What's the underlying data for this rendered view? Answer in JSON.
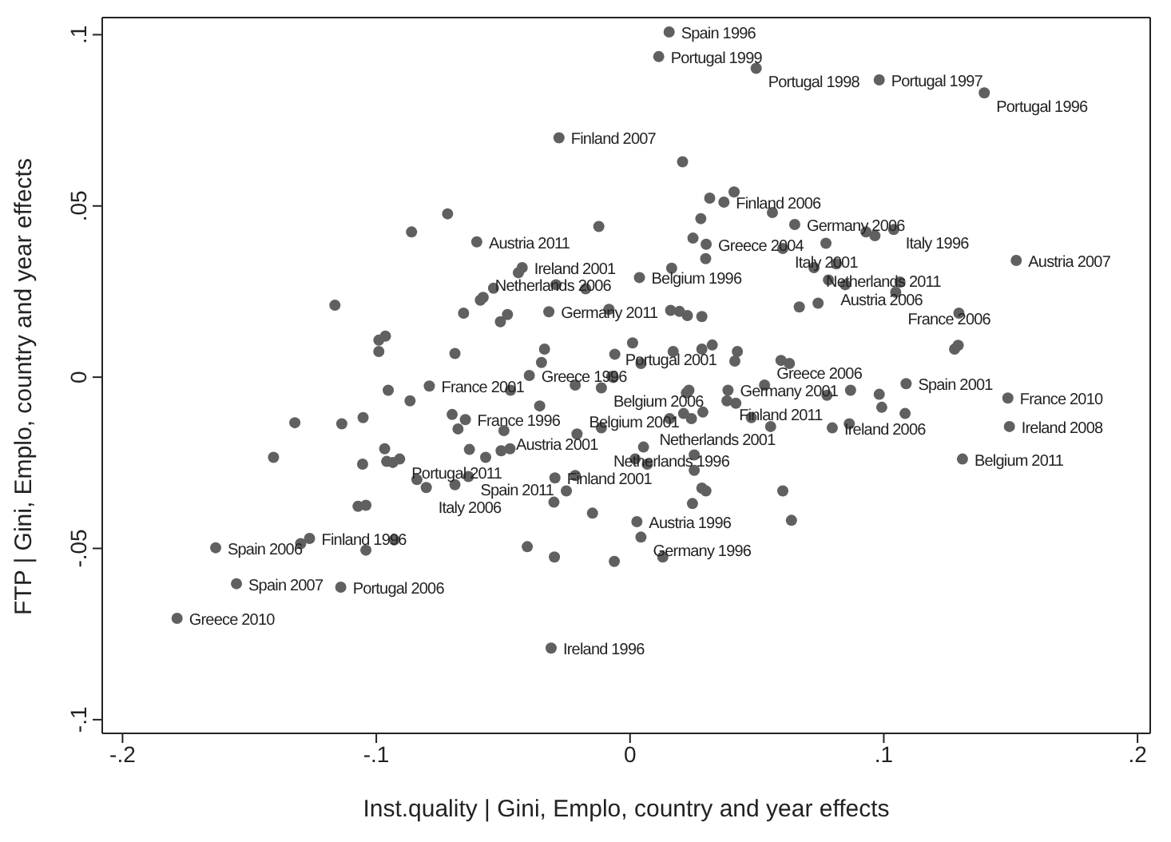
{
  "chart_data": {
    "type": "scatter",
    "xlabel": "Inst.quality |  Gini, Emplo, country and year effects",
    "ylabel": "FTP | Gini, Emplo, country and year effects",
    "color": "#606060",
    "marker": "circle",
    "xlim": [
      -0.208,
      0.205
    ],
    "ylim": [
      -0.104,
      0.105
    ],
    "xticks": [
      {
        "value": -0.2,
        "label": "-.2"
      },
      {
        "value": -0.1,
        "label": "-.1"
      },
      0,
      {
        "value": 0.1,
        "label": ".1"
      },
      {
        "value": 0.2,
        "label": ".2"
      }
    ],
    "yticks": [
      {
        "value": -0.1,
        "label": "-.1"
      },
      {
        "value": -0.05,
        "label": "-.05"
      },
      0,
      {
        "value": 0.05,
        "label": ".05"
      },
      {
        "value": 0.1,
        "label": ".1"
      }
    ],
    "x": [
      0.0154,
      0.0113,
      0.0497,
      0.0982,
      0.1396,
      -0.028,
      0.0207,
      0.0314,
      0.037,
      0.041,
      0.0561,
      0.0279,
      0.0649,
      0.0248,
      0.03,
      0.0298,
      0.0602,
      0.0772,
      0.093,
      0.0965,
      0.1039,
      0.1522,
      0.0037,
      0.0164,
      0.0725,
      0.0813,
      0.0782,
      0.0848,
      0.1047,
      0.1064,
      0.1296,
      0.0667,
      0.0741,
      -0.032,
      0.016,
      0.0195,
      0.0226,
      0.0283,
      0.1279,
      0.1293,
      -0.006,
      0.001,
      0.017,
      0.0283,
      0.0324,
      0.0423,
      0.0413,
      0.0595,
      0.0628,
      0.0043,
      -0.0719,
      -0.0861,
      -0.0123,
      -0.0604,
      -0.0425,
      -0.044,
      -0.0292,
      -0.0175,
      -0.0538,
      -0.0579,
      -0.059,
      -0.1163,
      -0.0656,
      -0.0483,
      -0.0511,
      -0.0083,
      -0.0964,
      -0.099,
      -0.099,
      -0.069,
      -0.0337,
      -0.0349,
      -0.0397,
      -0.0072,
      -0.0113,
      -0.0216,
      -0.0791,
      -0.0953,
      -0.0867,
      -0.0471,
      -0.0356,
      -0.1321,
      -0.1136,
      -0.1052,
      -0.0649,
      -0.0701,
      -0.0678,
      -0.0497,
      -0.0209,
      -0.0113,
      -0.1405,
      -0.0967,
      -0.1054,
      -0.0908,
      -0.0959,
      -0.0935,
      -0.0633,
      -0.0569,
      -0.0508,
      -0.0473,
      -0.0637,
      -0.084,
      -0.0803,
      -0.069,
      -0.1072,
      -0.1041,
      -0.03,
      -0.0251,
      -0.0296,
      -0.0216,
      -0.0148,
      -0.1633,
      -0.1298,
      -0.1263,
      -0.1041,
      -0.0929,
      -0.0405,
      -0.0298,
      -0.0062,
      -0.1551,
      -0.114,
      -0.1785,
      -0.0311,
      -0.0066,
      0.0222,
      0.0232,
      0.0386,
      0.0417,
      0.053,
      0.0776,
      0.0869,
      0.0382,
      0.1088,
      0.0982,
      0.0992,
      0.1084,
      0.1489,
      0.1495,
      0.0797,
      0.0864,
      0.131,
      0.0156,
      0.0211,
      0.0242,
      0.0287,
      0.0478,
      0.0554,
      0.0053,
      0.002,
      0.0068,
      0.0253,
      0.0253,
      0.0283,
      0.0299,
      0.0602,
      0.0636,
      0.0246,
      0.0027,
      0.0043,
      0.0129
    ],
    "values": [
      0.1008,
      0.0936,
      0.0902,
      0.0868,
      0.083,
      0.0699,
      0.0629,
      0.0523,
      0.0511,
      0.0541,
      0.0481,
      0.0463,
      0.0446,
      0.0406,
      0.0388,
      0.0346,
      0.0376,
      0.0391,
      0.0424,
      0.0413,
      0.0431,
      0.0341,
      0.0291,
      0.0318,
      0.032,
      0.0331,
      0.0284,
      0.027,
      0.0248,
      0.0278,
      0.0187,
      0.0205,
      0.0216,
      0.0191,
      0.0195,
      0.0192,
      0.018,
      0.0177,
      0.0082,
      0.0093,
      0.0067,
      0.01,
      0.0075,
      0.0082,
      0.0094,
      0.0075,
      0.0047,
      0.0049,
      0.004,
      0.004,
      0.0477,
      0.0424,
      0.044,
      0.0395,
      0.032,
      0.0305,
      0.027,
      0.0258,
      0.026,
      0.0233,
      0.0225,
      0.021,
      0.0187,
      0.0183,
      0.0162,
      0.0198,
      0.012,
      0.0108,
      0.0075,
      0.0069,
      0.0082,
      0.0043,
      0.0005,
      0.0002,
      -0.0031,
      -0.0023,
      -0.0026,
      -0.0038,
      -0.0069,
      -0.0038,
      -0.0084,
      -0.0133,
      -0.0136,
      -0.0118,
      -0.0124,
      -0.0109,
      -0.0151,
      -0.0156,
      -0.0166,
      -0.0148,
      -0.0234,
      -0.0209,
      -0.0254,
      -0.0239,
      -0.0246,
      -0.0249,
      -0.0211,
      -0.0234,
      -0.0215,
      -0.0209,
      -0.029,
      -0.0299,
      -0.0322,
      -0.0314,
      -0.0377,
      -0.0374,
      -0.0365,
      -0.0332,
      -0.0294,
      -0.0287,
      -0.0397,
      -0.0498,
      -0.0486,
      -0.0471,
      -0.0505,
      -0.0475,
      -0.0495,
      -0.0525,
      -0.0538,
      -0.0603,
      -0.0613,
      -0.0704,
      -0.0791,
      -0.0001,
      -0.0046,
      -0.0038,
      -0.0038,
      -0.0076,
      -0.0023,
      -0.0053,
      -0.0038,
      -0.0069,
      -0.0019,
      -0.005,
      -0.0088,
      -0.0106,
      -0.0061,
      -0.0144,
      -0.0148,
      -0.0136,
      -0.0239,
      -0.0121,
      -0.0106,
      -0.0121,
      -0.0102,
      -0.0118,
      -0.0144,
      -0.0204,
      -0.0239,
      -0.0254,
      -0.0227,
      -0.0272,
      -0.0324,
      -0.0332,
      -0.0332,
      -0.0418,
      -0.0369,
      -0.0422,
      -0.0467,
      -0.0525
    ],
    "value_labels": [
      "Spain 1996",
      "Portugal 1999",
      "Portugal 1998",
      "Portugal 1997",
      "Portugal 1996",
      "Finland 2007",
      null,
      null,
      "Finland 2006",
      null,
      null,
      null,
      "Germany 2006",
      null,
      "Greece 2004",
      null,
      "Italy 2001",
      null,
      null,
      null,
      "Italy 1996",
      "Austria 2007",
      "Belgium 1996",
      null,
      "Netherlands 2011",
      null,
      "Austria 2006",
      null,
      "France 2006",
      null,
      null,
      null,
      null,
      "Germany 2011",
      null,
      null,
      null,
      null,
      null,
      null,
      null,
      null,
      null,
      null,
      null,
      null,
      null,
      null,
      null,
      null,
      null,
      null,
      null,
      "Austria 2011",
      "Ireland 2001",
      null,
      null,
      null,
      null,
      "Netherlands 2006",
      null,
      null,
      null,
      null,
      null,
      null,
      null,
      null,
      null,
      null,
      null,
      null,
      "Greece 1996",
      null,
      "Belgium 2006",
      null,
      "France 2001",
      null,
      null,
      null,
      null,
      null,
      null,
      null,
      "France 1996",
      null,
      null,
      "Austria 2001",
      "Belgium 2001",
      "Netherlands 1996",
      null,
      null,
      null,
      "Portugal 2011",
      null,
      null,
      null,
      null,
      null,
      null,
      "Spain 2011",
      null,
      "Italy 2006",
      null,
      null,
      null,
      null,
      null,
      "Finland 2001",
      null,
      null,
      "Spain 2006",
      null,
      "Finland 1996",
      null,
      null,
      null,
      null,
      null,
      "Spain 2007",
      "Portugal 2006",
      "Greece 2010",
      "Ireland 1996",
      "Portugal 2001",
      null,
      null,
      "Germany 2001",
      null,
      "Greece 2006",
      null,
      null,
      "Finland 2011",
      "Spain 2001",
      null,
      null,
      null,
      "France 2010",
      "Ireland 2008",
      "Ireland 2006",
      null,
      "Belgium 2011",
      null,
      null,
      null,
      null,
      null,
      null,
      null,
      null,
      "Netherlands 2001",
      null,
      null,
      null,
      null,
      null,
      null,
      null,
      "Austria 1996",
      "Germany 1996",
      null
    ]
  }
}
